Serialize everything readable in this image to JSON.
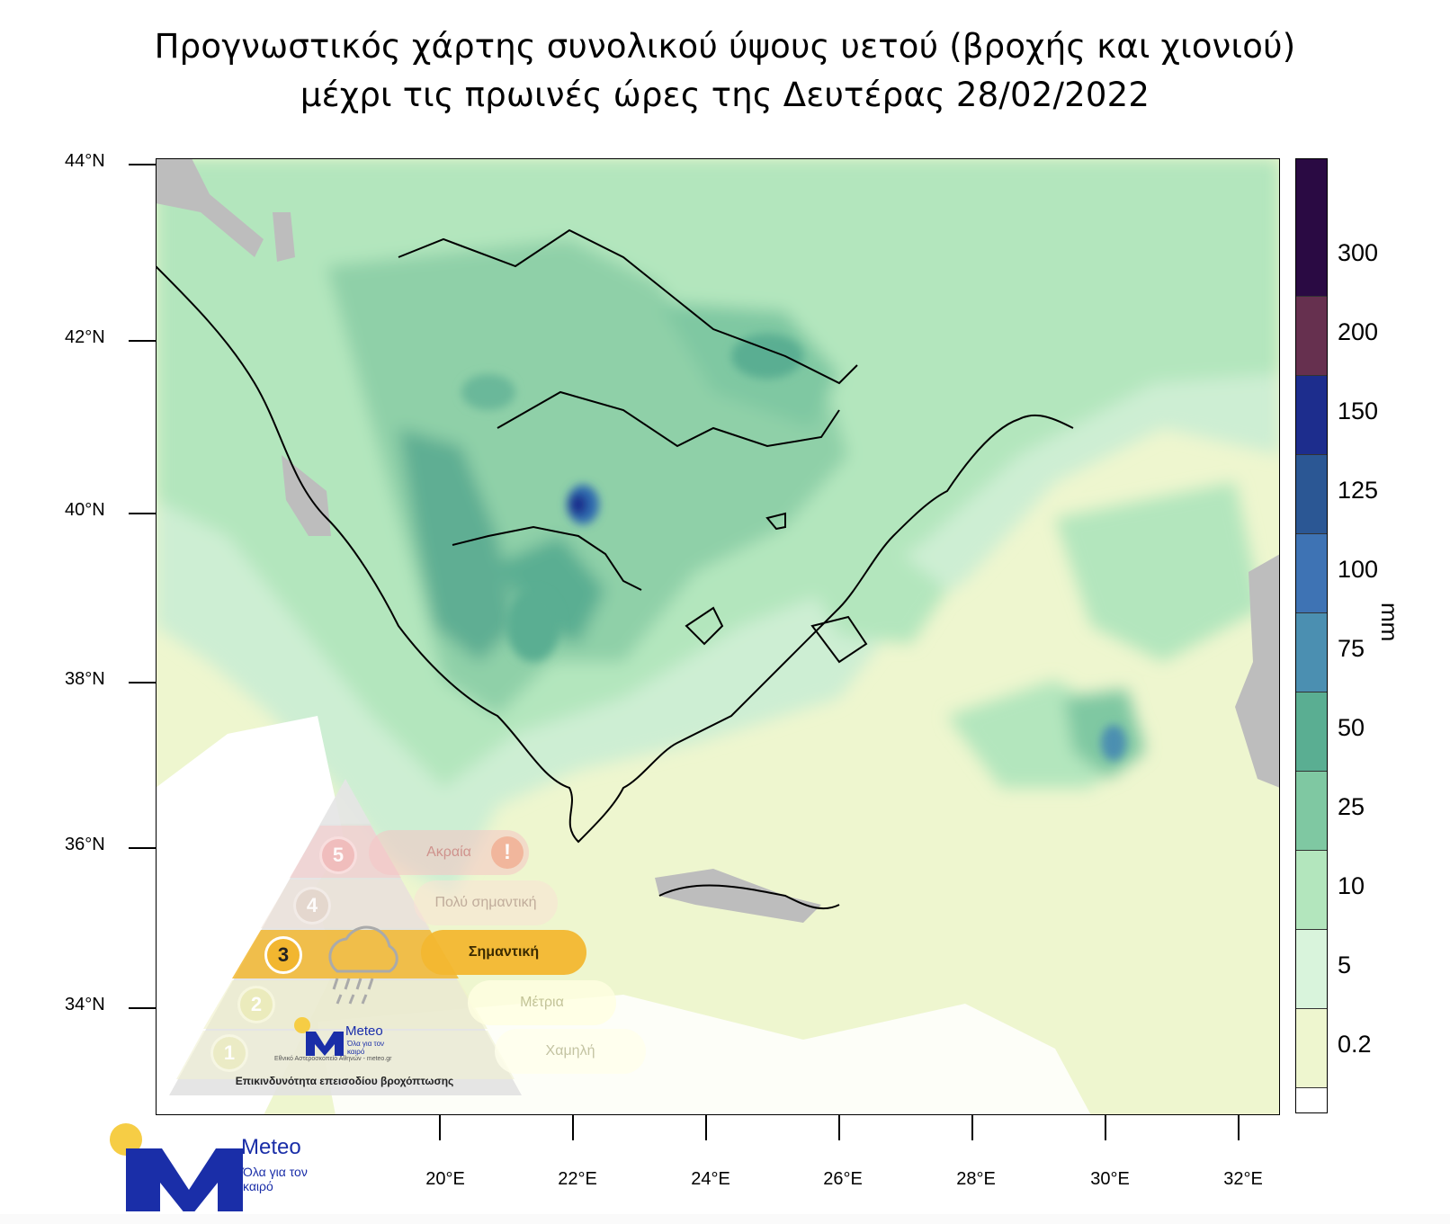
{
  "title": {
    "line1": "Προγνωστικός χάρτης συνολικού ύψους υετού (βροχής και χιονιού)",
    "line2": "μέχρι τις πρωινές ώρες της Δευτέρας 28/02/2022"
  },
  "map": {
    "lat_labels": [
      "44°N",
      "42°N",
      "40°N",
      "38°N",
      "36°N",
      "34°N"
    ],
    "lon_labels": [
      "20°E",
      "22°E",
      "24°E",
      "26°E",
      "28°E",
      "30°E",
      "32°E"
    ]
  },
  "colorbar": {
    "unit": "mm",
    "labels": [
      "0.2",
      "5",
      "10",
      "25",
      "50",
      "75",
      "100",
      "125",
      "150",
      "200",
      "300"
    ],
    "colors": [
      "#ffffff",
      "#eef6cf",
      "#d9f4dc",
      "#b3e6bd",
      "#7fc8a2",
      "#5aae92",
      "#4b8fb1",
      "#3e73b4",
      "#2b5794",
      "#1d2d8d",
      "#66304f",
      "#2a0a43"
    ]
  },
  "risk_panel": {
    "levels": [
      {
        "number": "5",
        "label": "Ακραία"
      },
      {
        "number": "4",
        "label": "Πολύ σημαντική"
      },
      {
        "number": "3",
        "label": "Σημαντική"
      },
      {
        "number": "2",
        "label": "Μέτρια"
      },
      {
        "number": "1",
        "label": "Χαμηλή"
      }
    ],
    "current_level": "3",
    "warning_symbol": "!",
    "brand": "Meteo",
    "slogan": "Όλα για τον καιρό",
    "institute": "Εθνικό Αστεροσκοπείο Αθηνών - meteo.gr",
    "caption": "Επικινδυνότητα επεισοδίου βροχόπτωσης",
    "icon": "rain-cloud-icon"
  },
  "logo": {
    "brand": "Meteo",
    "slogan": "Όλα για τον καιρό",
    "accent_color": "#f6cd45",
    "brand_color": "#1a2ea8"
  }
}
